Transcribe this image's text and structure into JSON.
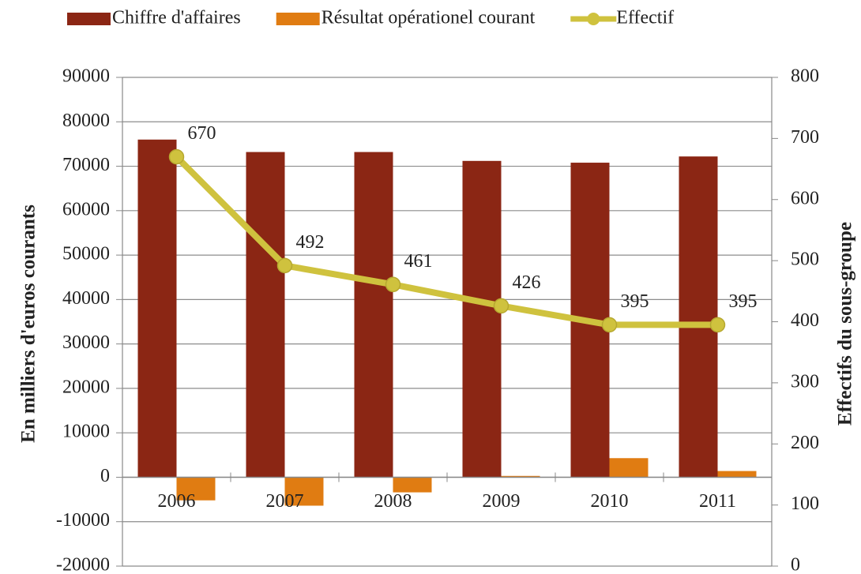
{
  "chart_data": {
    "type": "bar",
    "categories": [
      "2006",
      "2007",
      "2008",
      "2009",
      "2010",
      "2011"
    ],
    "series": [
      {
        "name": "Chiffre d'affaires",
        "color": "#8b2614",
        "values": [
          76000,
          73200,
          73200,
          71200,
          70800,
          72200
        ]
      },
      {
        "name": "Résultat opérationel courant",
        "color": "#e07c12",
        "values": [
          -5200,
          -6400,
          -3400,
          300,
          4300,
          1400
        ]
      },
      {
        "name": "Effectif",
        "type": "line",
        "axis": "y2",
        "color": "#cfc23e",
        "values": [
          670,
          492,
          461,
          426,
          395,
          395
        ]
      }
    ],
    "y_label": "En milliers d'euros courants",
    "y2_label": "Effectifs du sous-groupe",
    "ylim": [
      -20000,
      90000
    ],
    "yticks": [
      -20000,
      -10000,
      0,
      10000,
      20000,
      30000,
      40000,
      50000,
      60000,
      70000,
      80000,
      90000
    ],
    "y2lim": [
      0,
      800
    ],
    "y2ticks": [
      0,
      100,
      200,
      300,
      400,
      500,
      600,
      700,
      800
    ],
    "grid": true,
    "legend": "top"
  }
}
